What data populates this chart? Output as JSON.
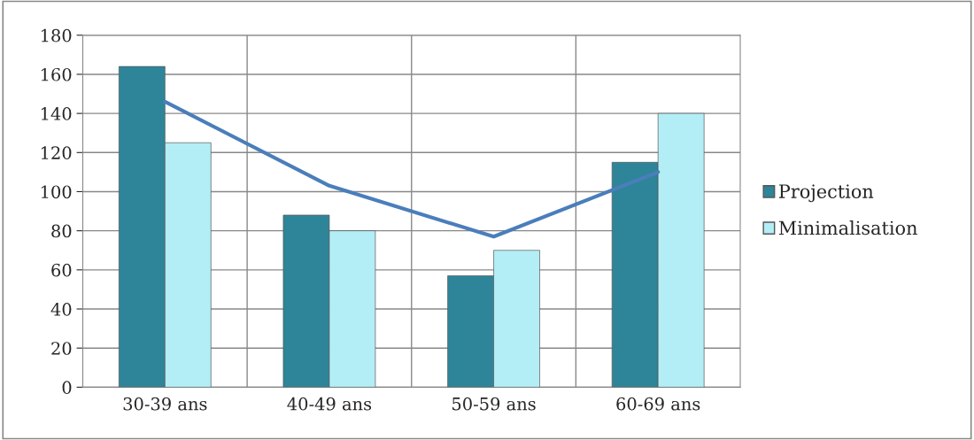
{
  "chart_data": {
    "type": "bar",
    "categories": [
      "30-39 ans",
      "40-49 ans",
      "50-59 ans",
      "60-69 ans"
    ],
    "series": [
      {
        "name": "Projection",
        "color": "#2e8599",
        "values": [
          164,
          88,
          57,
          115
        ]
      },
      {
        "name": "Minimalisation",
        "color": "#b3eef7",
        "values": [
          125,
          80,
          70,
          140
        ]
      },
      {
        "type": "line",
        "color": "#4a7ebb",
        "values": [
          146,
          103,
          77,
          110
        ]
      }
    ],
    "ylim": [
      0,
      180
    ],
    "yticks": [
      0,
      20,
      40,
      60,
      80,
      100,
      120,
      140,
      160,
      180
    ],
    "grid": true,
    "legend": "right"
  }
}
